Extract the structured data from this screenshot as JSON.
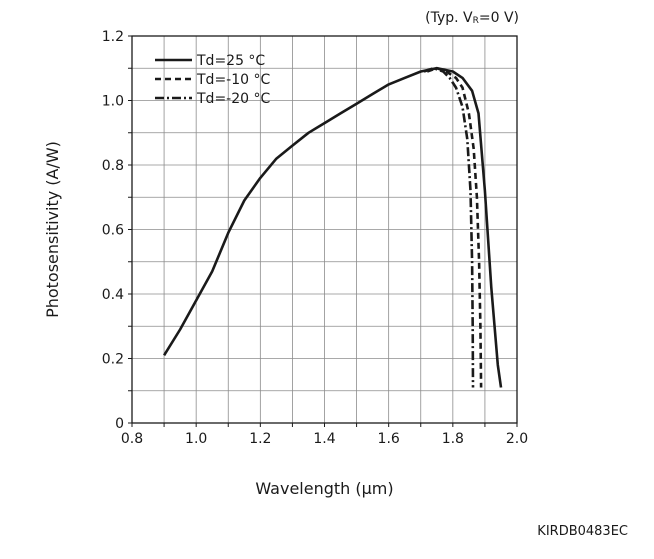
{
  "condition": {
    "prefix": "(Typ. V",
    "subscript": "R",
    "suffix": "=0 V)"
  },
  "figure_code": "KIRDB0483EC",
  "chart_data": {
    "type": "line",
    "xlabel": "Wavelength (μm)",
    "ylabel": "Photosensitivity (A/W)",
    "xlim": [
      0.8,
      2.0
    ],
    "ylim": [
      0,
      1.2
    ],
    "x_ticks": [
      0.8,
      0.9,
      1.0,
      1.1,
      1.2,
      1.3,
      1.4,
      1.5,
      1.6,
      1.7,
      1.8,
      1.9,
      2.0
    ],
    "x_tick_labels": [
      "0.8",
      "",
      "1.0",
      "",
      "1.2",
      "",
      "1.4",
      "",
      "1.6",
      "",
      "1.8",
      "",
      "2.0"
    ],
    "y_ticks": [
      0,
      0.1,
      0.2,
      0.3,
      0.4,
      0.5,
      0.6,
      0.7,
      0.8,
      0.9,
      1.0,
      1.1,
      1.2
    ],
    "y_tick_labels": [
      "0",
      "",
      "0.2",
      "",
      "0.4",
      "",
      "0.6",
      "",
      "0.8",
      "",
      "1.0",
      "",
      "1.2"
    ],
    "grid": true,
    "legend_position": "top-left",
    "series": [
      {
        "name": "Td=25 °C",
        "dash": "solid",
        "points": [
          [
            0.9,
            0.21
          ],
          [
            0.95,
            0.29
          ],
          [
            1.0,
            0.38
          ],
          [
            1.05,
            0.47
          ],
          [
            1.1,
            0.59
          ],
          [
            1.15,
            0.69
          ],
          [
            1.2,
            0.76
          ],
          [
            1.25,
            0.82
          ],
          [
            1.3,
            0.86
          ],
          [
            1.35,
            0.9
          ],
          [
            1.4,
            0.93
          ],
          [
            1.45,
            0.96
          ],
          [
            1.5,
            0.99
          ],
          [
            1.55,
            1.02
          ],
          [
            1.6,
            1.05
          ],
          [
            1.65,
            1.07
          ],
          [
            1.7,
            1.09
          ],
          [
            1.75,
            1.1
          ],
          [
            1.8,
            1.09
          ],
          [
            1.83,
            1.07
          ],
          [
            1.86,
            1.03
          ],
          [
            1.88,
            0.96
          ],
          [
            1.9,
            0.72
          ],
          [
            1.92,
            0.42
          ],
          [
            1.94,
            0.18
          ],
          [
            1.95,
            0.11
          ]
        ]
      },
      {
        "name": "Td=-10 °C",
        "dash": "dashed",
        "points": [
          [
            1.72,
            1.09
          ],
          [
            1.75,
            1.1
          ],
          [
            1.78,
            1.09
          ],
          [
            1.81,
            1.07
          ],
          [
            1.83,
            1.04
          ],
          [
            1.85,
            0.96
          ],
          [
            1.865,
            0.85
          ],
          [
            1.875,
            0.7
          ],
          [
            1.882,
            0.5
          ],
          [
            1.886,
            0.3
          ],
          [
            1.888,
            0.11
          ]
        ]
      },
      {
        "name": "Td=-20 °C",
        "dash": "dashdot",
        "points": [
          [
            1.71,
            1.09
          ],
          [
            1.74,
            1.1
          ],
          [
            1.77,
            1.09
          ],
          [
            1.79,
            1.07
          ],
          [
            1.81,
            1.04
          ],
          [
            1.83,
            0.98
          ],
          [
            1.845,
            0.88
          ],
          [
            1.855,
            0.72
          ],
          [
            1.86,
            0.5
          ],
          [
            1.862,
            0.3
          ],
          [
            1.863,
            0.11
          ]
        ]
      }
    ]
  }
}
